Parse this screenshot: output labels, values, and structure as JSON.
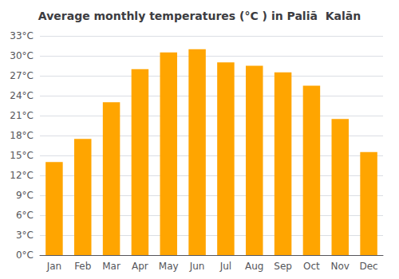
{
  "chart_data": {
    "type": "bar",
    "title": "Average monthly temperatures (°C ) in Paliā  Kalān",
    "categories": [
      "Jan",
      "Feb",
      "Mar",
      "Apr",
      "May",
      "Jun",
      "Jul",
      "Aug",
      "Sep",
      "Oct",
      "Nov",
      "Dec"
    ],
    "values": [
      14,
      17.5,
      23,
      28,
      30.5,
      31,
      29,
      28.5,
      27.5,
      25.5,
      20.5,
      15.5
    ],
    "color": "#FFA500",
    "ylim": [
      0,
      33
    ],
    "yticks": [
      {
        "value": 0,
        "label": "0°C"
      },
      {
        "value": 3,
        "label": "3°C"
      },
      {
        "value": 6,
        "label": "6°C"
      },
      {
        "value": 9,
        "label": "9°C"
      },
      {
        "value": 12,
        "label": "12°C"
      },
      {
        "value": 15,
        "label": "15°C"
      },
      {
        "value": 18,
        "label": "18°C"
      },
      {
        "value": 21,
        "label": "21°C"
      },
      {
        "value": 24,
        "label": "24°C"
      },
      {
        "value": 27,
        "label": "27°C"
      },
      {
        "value": 30,
        "label": "30°C"
      },
      {
        "value": 33,
        "label": "33°C"
      }
    ],
    "grid": true
  }
}
